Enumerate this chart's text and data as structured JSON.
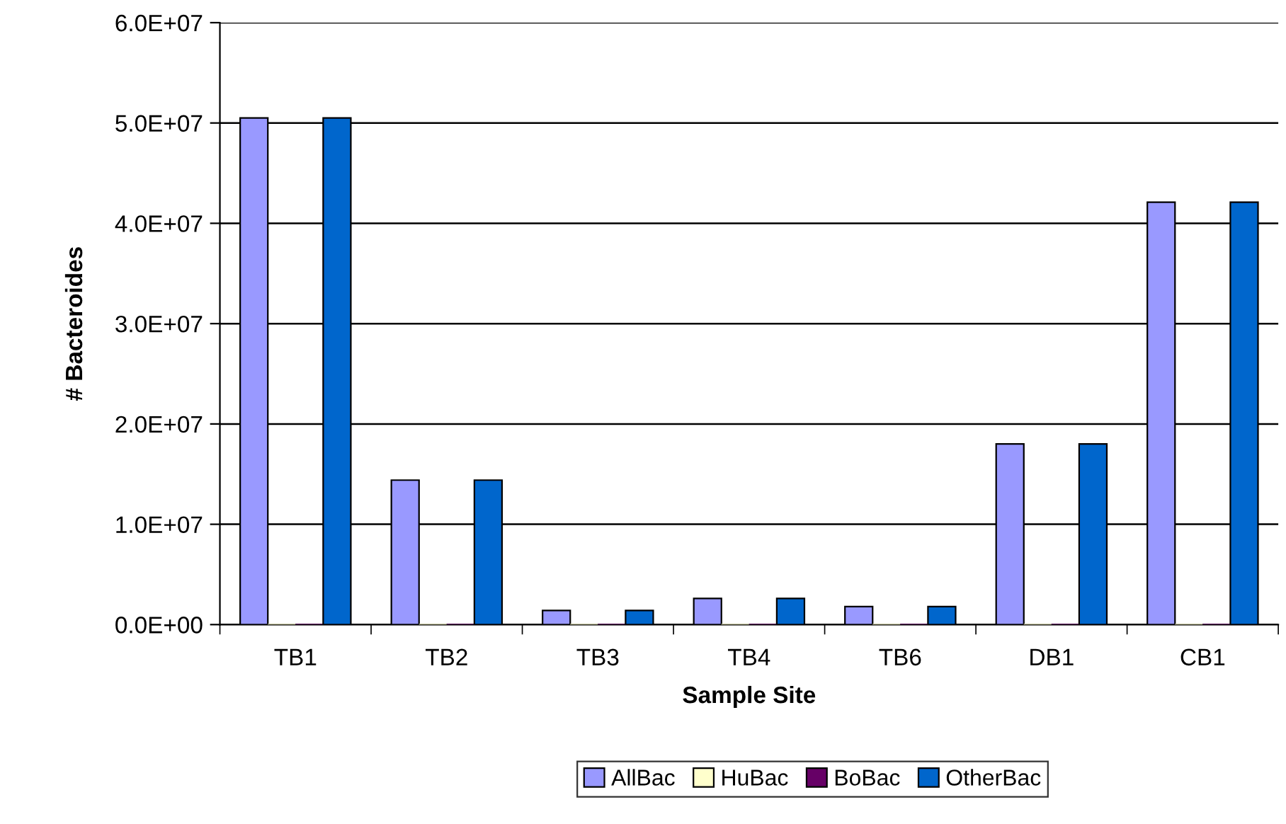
{
  "chart_data": {
    "type": "bar",
    "xlabel": "Sample Site",
    "ylabel": "# Bacteroides",
    "categories": [
      "TB1",
      "TB2",
      "TB3",
      "TB4",
      "TB6",
      "DB1",
      "CB1"
    ],
    "series": [
      {
        "name": "AllBac",
        "color": "#9999ff",
        "values": [
          50500000,
          14400000,
          1400000,
          2600000,
          1800000,
          18000000,
          42100000
        ]
      },
      {
        "name": "HuBac",
        "color": "#ffffcc",
        "values": [
          0,
          0,
          0,
          0,
          0,
          0,
          0
        ]
      },
      {
        "name": "BoBac",
        "color": "#660066",
        "values": [
          0,
          0,
          0,
          0,
          0,
          0,
          0
        ]
      },
      {
        "name": "OtherBac",
        "color": "#0066cc",
        "values": [
          50500000,
          14400000,
          1400000,
          2600000,
          1800000,
          18000000,
          42100000
        ]
      }
    ],
    "ylim": [
      0,
      60000000
    ],
    "yticks": [
      {
        "value": 0,
        "label": "0.0E+00"
      },
      {
        "value": 10000000,
        "label": "1.0E+07"
      },
      {
        "value": 20000000,
        "label": "2.0E+07"
      },
      {
        "value": 30000000,
        "label": "3.0E+07"
      },
      {
        "value": 40000000,
        "label": "4.0E+07"
      },
      {
        "value": 50000000,
        "label": "5.0E+07"
      },
      {
        "value": 60000000,
        "label": "6.0E+07"
      }
    ],
    "grid": "y",
    "legend": "bottom"
  }
}
